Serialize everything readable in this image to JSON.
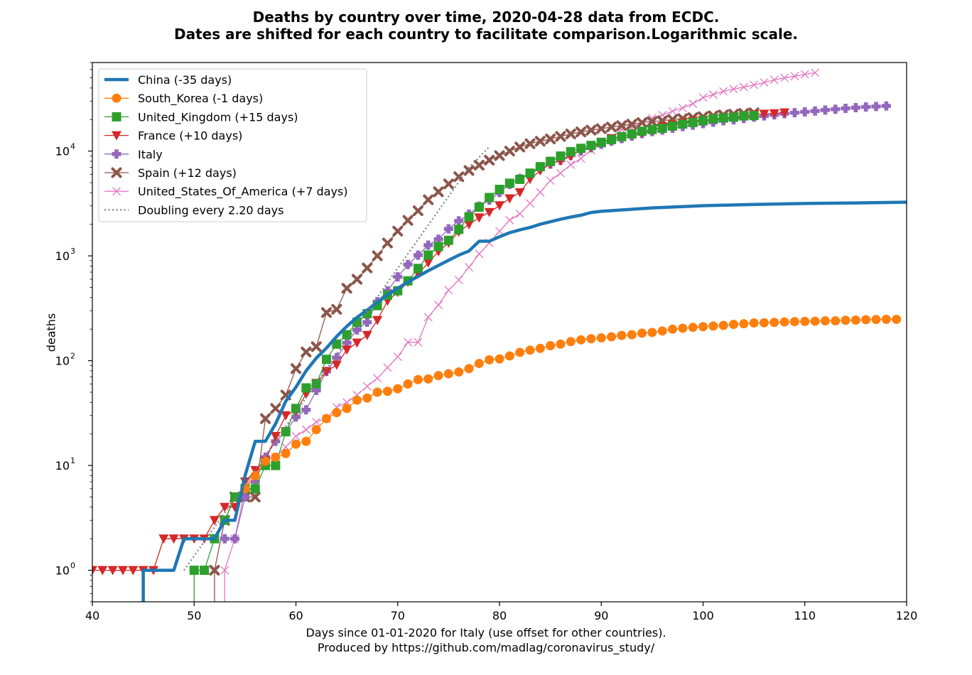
{
  "chart_data": {
    "type": "line",
    "title": "Deaths by country over time, 2020-04-28 data from ECDC.",
    "subtitle": "Dates are shifted for each country to facilitate comparison.Logarithmic scale.",
    "xlabel": "Days since 01-01-2020 for Italy (use offset for other countries).",
    "xlabel2": "Produced by https://github.com/madlag/coronavirus_study/",
    "ylabel": "deaths",
    "xlim": [
      40,
      120
    ],
    "ylim": [
      0.5,
      70000
    ],
    "yscale": "log",
    "xticks": [
      40,
      50,
      60,
      70,
      80,
      90,
      100,
      110,
      120
    ],
    "yticks": [
      {
        "base": "10",
        "exp": "0"
      },
      {
        "base": "10",
        "exp": "1"
      },
      {
        "base": "10",
        "exp": "2"
      },
      {
        "base": "10",
        "exp": "3"
      },
      {
        "base": "10",
        "exp": "4"
      }
    ],
    "grid": false,
    "legend_position": "top-left",
    "series": [
      {
        "name": "China (-35 days)",
        "color": "#1f77b4",
        "marker": "none",
        "width": 4.5,
        "x": [
          45,
          45,
          46,
          48,
          49,
          52,
          53,
          54,
          55,
          56,
          57,
          58,
          59,
          60,
          61,
          62,
          63,
          64,
          65,
          66,
          67,
          68,
          69,
          70,
          71,
          72,
          73,
          74,
          75,
          76,
          77,
          78,
          79,
          80,
          81,
          82,
          83,
          84,
          85,
          86,
          87,
          88,
          89,
          90,
          92,
          95,
          100,
          105,
          110,
          115,
          120
        ],
        "y": [
          0.5,
          1,
          1,
          1,
          2,
          2,
          3,
          3,
          8,
          17,
          17,
          25,
          41,
          56,
          80,
          106,
          132,
          170,
          213,
          259,
          304,
          361,
          425,
          490,
          563,
          637,
          722,
          811,
          908,
          1016,
          1113,
          1380,
          1380,
          1523,
          1665,
          1770,
          1868,
          2004,
          2118,
          2236,
          2345,
          2442,
          2592,
          2663,
          2744,
          2870,
          3012,
          3100,
          3160,
          3200,
          3250
        ]
      },
      {
        "name": "South_Korea (-1 days)",
        "color": "#ff7f0e",
        "marker": "circle",
        "x": [
          55,
          56,
          57,
          58,
          59,
          60,
          61,
          62,
          63,
          64,
          65,
          66,
          67,
          68,
          69,
          70,
          71,
          72,
          73,
          74,
          75,
          76,
          77,
          78,
          79,
          80,
          81,
          82,
          83,
          84,
          85,
          86,
          87,
          88,
          89,
          90,
          91,
          92,
          93,
          94,
          95,
          96,
          97,
          98,
          99,
          100,
          101,
          102,
          103,
          104,
          105,
          106,
          107,
          108,
          109,
          110,
          111,
          112,
          113,
          114,
          115,
          116,
          117,
          118,
          119
        ],
        "y": [
          6,
          8,
          11,
          12,
          13,
          16,
          17,
          22,
          28,
          32,
          35,
          42,
          44,
          50,
          51,
          54,
          60,
          66,
          67,
          72,
          75,
          78,
          84,
          94,
          102,
          104,
          111,
          120,
          126,
          131,
          139,
          144,
          152,
          158,
          162,
          165,
          169,
          174,
          177,
          183,
          186,
          192,
          200,
          204,
          208,
          211,
          214,
          217,
          222,
          225,
          229,
          230,
          232,
          234,
          236,
          237,
          238,
          240,
          240,
          243,
          244,
          246,
          247,
          248,
          248
        ]
      },
      {
        "name": "United_Kingdom (+15 days)",
        "color": "#2ca02c",
        "marker": "square",
        "x": [
          50,
          50,
          51,
          52,
          53,
          54,
          55,
          56,
          57,
          58,
          59,
          60,
          61,
          62,
          63,
          64,
          65,
          66,
          67,
          68,
          69,
          70,
          71,
          72,
          73,
          74,
          75,
          76,
          77,
          78,
          79,
          80,
          81,
          82,
          83,
          84,
          85,
          86,
          87,
          88,
          89,
          90,
          91,
          92,
          93,
          94,
          95,
          96,
          97,
          98,
          99,
          100,
          101,
          102,
          103,
          104,
          105
        ],
        "y": [
          0.5,
          1,
          1,
          2,
          3,
          5,
          6,
          6,
          10,
          10,
          21,
          35,
          55,
          60,
          103,
          144,
          177,
          233,
          281,
          335,
          422,
          465,
          578,
          759,
          1019,
          1228,
          1408,
          1789,
          2352,
          2921,
          3605,
          4313,
          4934,
          5373,
          6159,
          7097,
          7978,
          8958,
          9875,
          10612,
          11329,
          12107,
          12868,
          13729,
          14576,
          15464,
          16060,
          16509,
          17337,
          18100,
          18738,
          19506,
          20319,
          20732,
          21092,
          21678,
          21800
        ]
      },
      {
        "name": "France (+10 days)",
        "color": "#d62728",
        "marker": "triangle",
        "x": [
          40,
          41,
          42,
          43,
          44,
          45,
          46,
          47,
          48,
          49,
          50,
          51,
          52,
          53,
          54,
          55,
          56,
          57,
          58,
          59,
          60,
          61,
          62,
          63,
          64,
          65,
          66,
          67,
          68,
          69,
          70,
          71,
          72,
          73,
          74,
          75,
          76,
          77,
          78,
          79,
          80,
          81,
          82,
          83,
          84,
          85,
          86,
          87,
          88,
          89,
          90,
          91,
          92,
          93,
          94,
          95,
          96,
          97,
          98,
          99,
          100,
          101,
          102,
          103,
          104,
          105,
          106,
          107,
          108
        ],
        "y": [
          1,
          1,
          1,
          1,
          1,
          1,
          1,
          2,
          2,
          2,
          2,
          2,
          3,
          4,
          4,
          7,
          9,
          11,
          19,
          30,
          33,
          48,
          61,
          79,
          91,
          127,
          148,
          175,
          243,
          372,
          450,
          562,
          674,
          860,
          1100,
          1331,
          1696,
          1995,
          2314,
          2606,
          3024,
          3523,
          4032,
          5387,
          6507,
          7560,
          8078,
          8911,
          10328,
          10869,
          12210,
          13197,
          13832,
          14393,
          14967,
          15712,
          17148,
          17901,
          18681,
          19323,
          19718,
          20240,
          20765,
          21340,
          21856,
          22245,
          22614,
          22856,
          23293
        ]
      },
      {
        "name": "Italy",
        "color": "#9467bd",
        "marker": "plus",
        "x": [
          53,
          54,
          55,
          56,
          57,
          58,
          59,
          60,
          61,
          62,
          63,
          64,
          65,
          66,
          67,
          68,
          69,
          70,
          71,
          72,
          73,
          74,
          75,
          76,
          77,
          78,
          79,
          80,
          81,
          82,
          83,
          84,
          85,
          86,
          87,
          88,
          89,
          90,
          91,
          92,
          93,
          94,
          95,
          96,
          97,
          98,
          99,
          100,
          101,
          102,
          103,
          104,
          105,
          106,
          107,
          108,
          109,
          110,
          111,
          112,
          113,
          114,
          115,
          116,
          117,
          118
        ],
        "y": [
          2,
          2,
          5,
          7,
          12,
          17,
          21,
          29,
          34,
          52,
          79,
          107,
          148,
          197,
          233,
          366,
          463,
          631,
          827,
          1016,
          1266,
          1441,
          1809,
          2158,
          2503,
          2978,
          3405,
          4032,
          4825,
          5476,
          6077,
          6820,
          7503,
          8165,
          9134,
          10023,
          10779,
          11591,
          12428,
          13155,
          13915,
          14681,
          15362,
          15887,
          16523,
          17127,
          17669,
          18279,
          18849,
          19468,
          19899,
          20465,
          21067,
          21645,
          22170,
          22745,
          23227,
          23660,
          24114,
          24648,
          25085,
          25549,
          25969,
          26384,
          26644,
          26977
        ]
      },
      {
        "name": "Spain (+12 days)",
        "color": "#8c564b",
        "marker": "x-thick",
        "x": [
          52,
          52,
          53,
          54,
          55,
          56,
          57,
          58,
          59,
          60,
          61,
          62,
          63,
          64,
          65,
          66,
          67,
          68,
          69,
          70,
          71,
          72,
          73,
          74,
          75,
          76,
          77,
          78,
          79,
          80,
          81,
          82,
          83,
          84,
          85,
          86,
          87,
          88,
          89,
          90,
          91,
          92,
          93,
          94,
          95,
          96,
          97,
          98,
          99,
          100,
          101,
          102,
          103,
          104,
          105
        ],
        "y": [
          0.5,
          1,
          3,
          5,
          5,
          5,
          28,
          35,
          47,
          84,
          121,
          136,
          288,
          309,
          491,
          598,
          767,
          1002,
          1326,
          1720,
          2182,
          2696,
          3434,
          4089,
          4858,
          5690,
          6528,
          7340,
          8189,
          9053,
          10003,
          10935,
          11744,
          12418,
          13055,
          13798,
          14555,
          15238,
          15843,
          16353,
          16972,
          17489,
          18056,
          18708,
          19130,
          19478,
          20043,
          20453,
          20852,
          21282,
          21717,
          22157,
          22524,
          22902,
          23190
        ]
      },
      {
        "name": "United_States_Of_America (+7 days)",
        "color": "#e377c2",
        "marker": "x",
        "x": [
          53,
          53,
          54,
          55,
          56,
          57,
          58,
          59,
          60,
          61,
          62,
          63,
          64,
          65,
          66,
          67,
          68,
          69,
          70,
          71,
          72,
          73,
          74,
          75,
          76,
          77,
          78,
          79,
          80,
          81,
          82,
          83,
          84,
          85,
          86,
          87,
          88,
          89,
          90,
          91,
          92,
          93,
          94,
          95,
          96,
          97,
          98,
          99,
          100,
          101,
          102,
          103,
          104,
          105,
          106,
          107,
          108,
          109,
          110,
          111
        ],
        "y": [
          0.5,
          1,
          2,
          6,
          9,
          11,
          12,
          15,
          19,
          22,
          26,
          28,
          36,
          40,
          47,
          57,
          68,
          86,
          109,
          150,
          150,
          260,
          340,
          471,
          590,
          780,
          1046,
          1327,
          1722,
          2188,
          2520,
          3170,
          4052,
          5226,
          6160,
          7420,
          8496,
          10216,
          11704,
          13485,
          16052,
          16686,
          18761,
          20608,
          22073,
          24012,
          25813,
          28338,
          32429,
          34617,
          37179,
          39090,
          40773,
          42833,
          45075,
          47805,
          49983,
          51834,
          54023,
          55952
        ]
      },
      {
        "name": "Doubling every 2.20 days",
        "color": "#7f7f7f",
        "marker": "none",
        "dotted": true,
        "width": 2.2,
        "x": [
          49,
          51,
          53,
          55,
          57,
          59,
          61,
          63,
          65,
          67,
          69,
          71,
          73,
          75,
          77,
          79
        ],
        "y": [
          1,
          1.88,
          3.54,
          6.66,
          12.5,
          23.6,
          44.3,
          83.4,
          157,
          295,
          556,
          1045,
          1967,
          3700,
          6960,
          11000
        ]
      }
    ]
  }
}
